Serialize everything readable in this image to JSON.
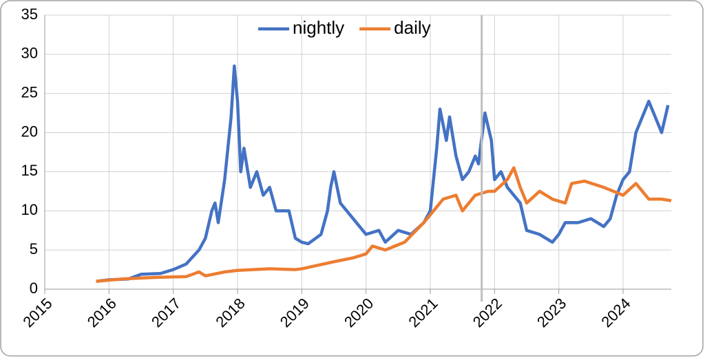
{
  "chart_data": {
    "type": "line",
    "xlim": [
      2015,
      2024.75
    ],
    "xticks": [
      2015,
      2016,
      2017,
      2018,
      2019,
      2020,
      2021,
      2022,
      2023,
      2024
    ],
    "ylim": [
      0,
      35
    ],
    "yticks": [
      0,
      5,
      10,
      15,
      20,
      25,
      30,
      35
    ],
    "grid": true,
    "legend": "top",
    "vline": {
      "x": 2021.8,
      "color": "#bfbfbf"
    },
    "series": [
      {
        "name": "nightly",
        "color": "#4472c4",
        "x": [
          2015.8,
          2016.0,
          2016.3,
          2016.5,
          2016.8,
          2017.0,
          2017.2,
          2017.4,
          2017.5,
          2017.6,
          2017.65,
          2017.7,
          2017.8,
          2017.9,
          2017.95,
          2018.0,
          2018.05,
          2018.1,
          2018.2,
          2018.3,
          2018.4,
          2018.5,
          2018.6,
          2018.8,
          2018.9,
          2019.0,
          2019.1,
          2019.3,
          2019.4,
          2019.45,
          2019.5,
          2019.6,
          2019.7,
          2019.8,
          2020.0,
          2020.2,
          2020.3,
          2020.5,
          2020.7,
          2020.9,
          2021.0,
          2021.1,
          2021.15,
          2021.25,
          2021.3,
          2021.4,
          2021.5,
          2021.6,
          2021.7,
          2021.75,
          2021.85,
          2021.95,
          2022.0,
          2022.1,
          2022.2,
          2022.3,
          2022.4,
          2022.5,
          2022.7,
          2022.9,
          2023.0,
          2023.1,
          2023.3,
          2023.5,
          2023.7,
          2023.8,
          2023.9,
          2024.0,
          2024.1,
          2024.2,
          2024.3,
          2024.4,
          2024.5,
          2024.6,
          2024.7
        ],
        "values": [
          1,
          1.2,
          1.3,
          1.9,
          2.0,
          2.5,
          3.2,
          5,
          6.5,
          10,
          11,
          8.5,
          14,
          22,
          28.5,
          24,
          15,
          18,
          13,
          15,
          12,
          13,
          10,
          10,
          6.5,
          6,
          5.8,
          7,
          10,
          13,
          15,
          11,
          10,
          9,
          7,
          7.5,
          6,
          7.5,
          7,
          8.5,
          10,
          18,
          23,
          19,
          22,
          17,
          14,
          15,
          17,
          16,
          22.5,
          19,
          14,
          15,
          13,
          12,
          11,
          7.5,
          7,
          6,
          7,
          8.5,
          8.5,
          9,
          8,
          9,
          12,
          14,
          15,
          20,
          22,
          24,
          22,
          20,
          23.5
        ]
      },
      {
        "name": "daily",
        "color": "#ed7d31",
        "x": [
          2015.8,
          2016.2,
          2016.7,
          2017.2,
          2017.4,
          2017.5,
          2017.8,
          2018.0,
          2018.5,
          2018.9,
          2019.0,
          2019.5,
          2019.8,
          2020.0,
          2020.1,
          2020.3,
          2020.6,
          2020.9,
          2021.0,
          2021.2,
          2021.4,
          2021.5,
          2021.7,
          2021.9,
          2022.0,
          2022.2,
          2022.3,
          2022.4,
          2022.5,
          2022.7,
          2022.9,
          2023.1,
          2023.2,
          2023.4,
          2023.7,
          2024.0,
          2024.2,
          2024.4,
          2024.6,
          2024.75
        ],
        "values": [
          1,
          1.3,
          1.5,
          1.6,
          2.2,
          1.7,
          2.2,
          2.4,
          2.6,
          2.5,
          2.6,
          3.5,
          4,
          4.5,
          5.5,
          5,
          6,
          8.5,
          9.5,
          11.5,
          12,
          10,
          12,
          12.5,
          12.5,
          14,
          15.5,
          13,
          11,
          12.5,
          11.5,
          11,
          13.5,
          13.8,
          13,
          12,
          13.5,
          11.5,
          11.5,
          11.3
        ]
      }
    ]
  }
}
